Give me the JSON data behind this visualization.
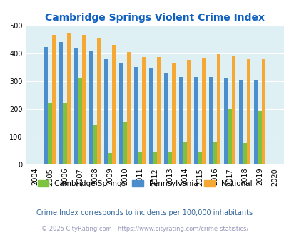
{
  "title": "Cambridge Springs Violent Crime Index",
  "title_color": "#1060c0",
  "years": [
    "04",
    "05",
    "06",
    "07",
    "08",
    "09",
    "10",
    "11",
    "12",
    "13",
    "14",
    "15",
    "16",
    "17",
    "18",
    "19",
    "20"
  ],
  "cambridge_springs": [
    0,
    220,
    220,
    310,
    140,
    42,
    155,
    43,
    43,
    47,
    82,
    43,
    83,
    200,
    78,
    193,
    0
  ],
  "pennsylvania": [
    0,
    425,
    442,
    418,
    410,
    380,
    367,
    353,
    350,
    329,
    315,
    315,
    315,
    312,
    306,
    306,
    0
  ],
  "national": [
    0,
    468,
    473,
    467,
    455,
    432,
    406,
    388,
    388,
    368,
    377,
    383,
    397,
    394,
    380,
    380,
    0
  ],
  "color_cambridge": "#7DC340",
  "color_pennsylvania": "#4C8ECC",
  "color_national": "#F5A833",
  "bg_color": "#DFF0F5",
  "ylim": [
    0,
    500
  ],
  "yticks": [
    0,
    100,
    200,
    300,
    400,
    500
  ],
  "subtitle": "Crime Index corresponds to incidents per 100,000 inhabitants",
  "footer": "© 2025 CityRating.com - https://www.cityrating.com/crime-statistics/",
  "subtitle_color": "#336699",
  "footer_color": "#9999bb",
  "legend_labels": [
    "Cambridge Springs",
    "Pennsylvania",
    "National"
  ]
}
